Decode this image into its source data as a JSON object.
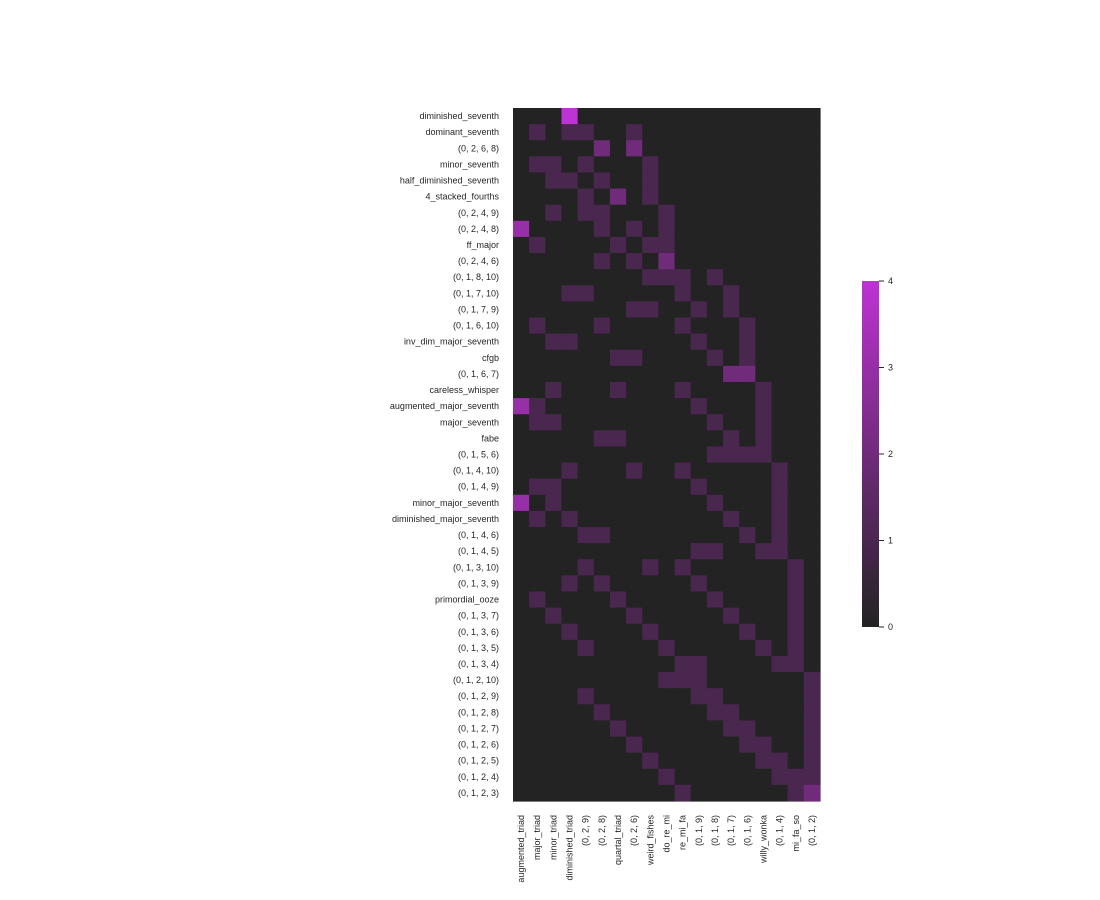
{
  "chart_data": {
    "type": "heatmap",
    "title": "",
    "xlabel": "",
    "ylabel": "",
    "x_labels": [
      "augmented_triad",
      "major_triad",
      "minor_triad",
      "diminished_triad",
      "(0, 2, 9)",
      "(0, 2, 8)",
      "quartal_triad",
      "(0, 2, 6)",
      "weird_fishes",
      "do_re_mi",
      "re_mi_fa",
      "(0, 1, 9)",
      "(0, 1, 8)",
      "(0, 1, 7)",
      "(0, 1, 6)",
      "willy_wonka",
      "(0, 1, 4)",
      "mi_fa_so",
      "(0, 1, 2)"
    ],
    "y_labels": [
      "diminished_seventh",
      "dominant_seventh",
      "(0, 2, 6, 8)",
      "minor_seventh",
      "half_diminished_seventh",
      "4_stacked_fourths",
      "(0, 2, 4, 9)",
      "(0, 2, 4, 8)",
      "ff_major",
      "(0, 2, 4, 6)",
      "(0, 1, 8, 10)",
      "(0, 1, 7, 10)",
      "(0, 1, 7, 9)",
      "(0, 1, 6, 10)",
      "inv_dim_major_seventh",
      "cfgb",
      "(0, 1, 6, 7)",
      "careless_whisper",
      "augmented_major_seventh",
      "major_seventh",
      "fabe",
      "(0, 1, 5, 6)",
      "(0, 1, 4, 10)",
      "(0, 1, 4, 9)",
      "minor_major_seventh",
      "diminished_major_seventh",
      "(0, 1, 4, 6)",
      "(0, 1, 4, 5)",
      "(0, 1, 3, 10)",
      "(0, 1, 3, 9)",
      "primordial_ooze",
      "(0, 1, 3, 7)",
      "(0, 1, 3, 6)",
      "(0, 1, 3, 5)",
      "(0, 1, 3, 4)",
      "(0, 1, 2, 10)",
      "(0, 1, 2, 9)",
      "(0, 1, 2, 8)",
      "(0, 1, 2, 7)",
      "(0, 1, 2, 6)",
      "(0, 1, 2, 5)",
      "(0, 1, 2, 4)",
      "(0, 1, 2, 3)"
    ],
    "values": [
      [
        0,
        0,
        0,
        4,
        0,
        0,
        0,
        0,
        0,
        0,
        0,
        0,
        0,
        0,
        0,
        0,
        0,
        0,
        0
      ],
      [
        0,
        1,
        0,
        1,
        1,
        0,
        0,
        1,
        0,
        0,
        0,
        0,
        0,
        0,
        0,
        0,
        0,
        0,
        0
      ],
      [
        0,
        0,
        0,
        0,
        0,
        2,
        0,
        2,
        0,
        0,
        0,
        0,
        0,
        0,
        0,
        0,
        0,
        0,
        0
      ],
      [
        0,
        1,
        1,
        0,
        1,
        0,
        0,
        0,
        1,
        0,
        0,
        0,
        0,
        0,
        0,
        0,
        0,
        0,
        0
      ],
      [
        0,
        0,
        1,
        1,
        0,
        1,
        0,
        0,
        1,
        0,
        0,
        0,
        0,
        0,
        0,
        0,
        0,
        0,
        0
      ],
      [
        0,
        0,
        0,
        0,
        1,
        0,
        2,
        0,
        1,
        0,
        0,
        0,
        0,
        0,
        0,
        0,
        0,
        0,
        0
      ],
      [
        0,
        0,
        1,
        0,
        1,
        1,
        0,
        0,
        0,
        1,
        0,
        0,
        0,
        0,
        0,
        0,
        0,
        0,
        0
      ],
      [
        3,
        0,
        0,
        0,
        0,
        1,
        0,
        1,
        0,
        1,
        0,
        0,
        0,
        0,
        0,
        0,
        0,
        0,
        0
      ],
      [
        0,
        1,
        0,
        0,
        0,
        0,
        1,
        0,
        1,
        1,
        0,
        0,
        0,
        0,
        0,
        0,
        0,
        0,
        0
      ],
      [
        0,
        0,
        0,
        0,
        0,
        1,
        0,
        1,
        0,
        2,
        0,
        0,
        0,
        0,
        0,
        0,
        0,
        0,
        0
      ],
      [
        0,
        0,
        0,
        0,
        0,
        0,
        0,
        0,
        1,
        1,
        1,
        0,
        1,
        0,
        0,
        0,
        0,
        0,
        0
      ],
      [
        0,
        0,
        0,
        1,
        1,
        0,
        0,
        0,
        0,
        0,
        1,
        0,
        0,
        1,
        0,
        0,
        0,
        0,
        0
      ],
      [
        0,
        0,
        0,
        0,
        0,
        0,
        0,
        1,
        1,
        0,
        0,
        1,
        0,
        1,
        0,
        0,
        0,
        0,
        0
      ],
      [
        0,
        1,
        0,
        0,
        0,
        1,
        0,
        0,
        0,
        0,
        1,
        0,
        0,
        0,
        1,
        0,
        0,
        0,
        0
      ],
      [
        0,
        0,
        1,
        1,
        0,
        0,
        0,
        0,
        0,
        0,
        0,
        1,
        0,
        0,
        1,
        0,
        0,
        0,
        0
      ],
      [
        0,
        0,
        0,
        0,
        0,
        0,
        1,
        1,
        0,
        0,
        0,
        0,
        1,
        0,
        1,
        0,
        0,
        0,
        0
      ],
      [
        0,
        0,
        0,
        0,
        0,
        0,
        0,
        0,
        0,
        0,
        0,
        0,
        0,
        2,
        2,
        0,
        0,
        0,
        0
      ],
      [
        0,
        0,
        1,
        0,
        0,
        0,
        1,
        0,
        0,
        0,
        1,
        0,
        0,
        0,
        0,
        1,
        0,
        0,
        0
      ],
      [
        3,
        1,
        0,
        0,
        0,
        0,
        0,
        0,
        0,
        0,
        0,
        1,
        0,
        0,
        0,
        1,
        0,
        0,
        0
      ],
      [
        0,
        1,
        1,
        0,
        0,
        0,
        0,
        0,
        0,
        0,
        0,
        0,
        1,
        0,
        0,
        1,
        0,
        0,
        0
      ],
      [
        0,
        0,
        0,
        0,
        0,
        1,
        1,
        0,
        0,
        0,
        0,
        0,
        0,
        1,
        0,
        1,
        0,
        0,
        0
      ],
      [
        0,
        0,
        0,
        0,
        0,
        0,
        0,
        0,
        0,
        0,
        0,
        0,
        1,
        1,
        1,
        1,
        0,
        0,
        0
      ],
      [
        0,
        0,
        0,
        1,
        0,
        0,
        0,
        1,
        0,
        0,
        1,
        0,
        0,
        0,
        0,
        0,
        1,
        0,
        0
      ],
      [
        0,
        1,
        1,
        0,
        0,
        0,
        0,
        0,
        0,
        0,
        0,
        1,
        0,
        0,
        0,
        0,
        1,
        0,
        0
      ],
      [
        3,
        0,
        1,
        0,
        0,
        0,
        0,
        0,
        0,
        0,
        0,
        0,
        1,
        0,
        0,
        0,
        1,
        0,
        0
      ],
      [
        0,
        1,
        0,
        1,
        0,
        0,
        0,
        0,
        0,
        0,
        0,
        0,
        0,
        1,
        0,
        0,
        1,
        0,
        0
      ],
      [
        0,
        0,
        0,
        0,
        1,
        1,
        0,
        0,
        0,
        0,
        0,
        0,
        0,
        0,
        1,
        0,
        1,
        0,
        0
      ],
      [
        0,
        0,
        0,
        0,
        0,
        0,
        0,
        0,
        0,
        0,
        0,
        1,
        1,
        0,
        0,
        1,
        1,
        0,
        0
      ],
      [
        0,
        0,
        0,
        0,
        1,
        0,
        0,
        0,
        1,
        0,
        1,
        0,
        0,
        0,
        0,
        0,
        0,
        1,
        0
      ],
      [
        0,
        0,
        0,
        1,
        0,
        1,
        0,
        0,
        0,
        0,
        0,
        1,
        0,
        0,
        0,
        0,
        0,
        1,
        0
      ],
      [
        0,
        1,
        0,
        0,
        0,
        0,
        1,
        0,
        0,
        0,
        0,
        0,
        1,
        0,
        0,
        0,
        0,
        1,
        0
      ],
      [
        0,
        0,
        1,
        0,
        0,
        0,
        0,
        1,
        0,
        0,
        0,
        0,
        0,
        1,
        0,
        0,
        0,
        1,
        0
      ],
      [
        0,
        0,
        0,
        1,
        0,
        0,
        0,
        0,
        1,
        0,
        0,
        0,
        0,
        0,
        1,
        0,
        0,
        1,
        0
      ],
      [
        0,
        0,
        0,
        0,
        1,
        0,
        0,
        0,
        0,
        1,
        0,
        0,
        0,
        0,
        0,
        1,
        0,
        1,
        0
      ],
      [
        0,
        0,
        0,
        0,
        0,
        0,
        0,
        0,
        0,
        0,
        1,
        1,
        0,
        0,
        0,
        0,
        1,
        1,
        0
      ],
      [
        0,
        0,
        0,
        0,
        0,
        0,
        0,
        0,
        0,
        1,
        1,
        1,
        0,
        0,
        0,
        0,
        0,
        0,
        1
      ],
      [
        0,
        0,
        0,
        0,
        1,
        0,
        0,
        0,
        0,
        0,
        0,
        1,
        1,
        0,
        0,
        0,
        0,
        0,
        1
      ],
      [
        0,
        0,
        0,
        0,
        0,
        1,
        0,
        0,
        0,
        0,
        0,
        0,
        1,
        1,
        0,
        0,
        0,
        0,
        1
      ],
      [
        0,
        0,
        0,
        0,
        0,
        0,
        1,
        0,
        0,
        0,
        0,
        0,
        0,
        1,
        1,
        0,
        0,
        0,
        1
      ],
      [
        0,
        0,
        0,
        0,
        0,
        0,
        0,
        1,
        0,
        0,
        0,
        0,
        0,
        0,
        1,
        1,
        0,
        0,
        1
      ],
      [
        0,
        0,
        0,
        0,
        0,
        0,
        0,
        0,
        1,
        0,
        0,
        0,
        0,
        0,
        0,
        1,
        1,
        0,
        1
      ],
      [
        0,
        0,
        0,
        0,
        0,
        0,
        0,
        0,
        0,
        1,
        0,
        0,
        0,
        0,
        0,
        0,
        1,
        1,
        1
      ],
      [
        0,
        0,
        0,
        0,
        0,
        0,
        0,
        0,
        0,
        0,
        1,
        0,
        0,
        0,
        0,
        0,
        0,
        1,
        2
      ]
    ],
    "vmin": 0,
    "vmax": 4,
    "colorbar_ticks": [
      "0",
      "1",
      "2",
      "3",
      "4"
    ],
    "colormap": [
      "#232323",
      "#bd33d3"
    ],
    "grid": false,
    "legend": "right"
  }
}
